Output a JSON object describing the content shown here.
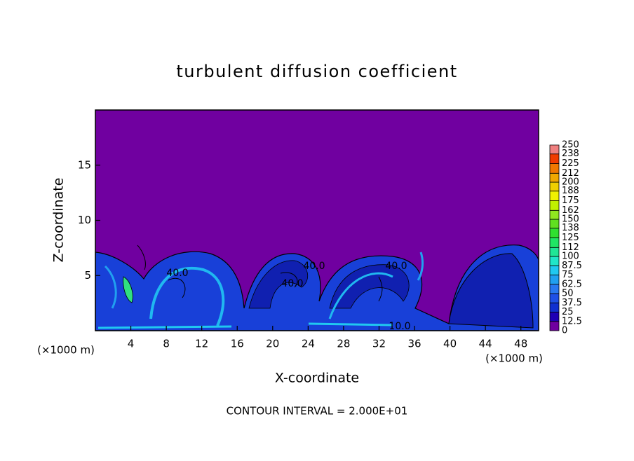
{
  "chart_data": {
    "type": "contour",
    "title": "turbulent diffusion coefficient",
    "x_label": "X-coordinate",
    "y_label": "Z-coordinate",
    "x_unit_left": "(×1000 m)",
    "x_unit_right": "(×1000 m)",
    "footer": "CONTOUR INTERVAL = 2.000E+01",
    "xlim": [
      0,
      50
    ],
    "xticks": [
      4,
      8,
      12,
      16,
      20,
      24,
      28,
      32,
      36,
      40,
      44,
      48
    ],
    "ylim": [
      0,
      20
    ],
    "yticks": [
      5,
      10,
      15
    ],
    "contour_labels": [
      "40.0",
      "40.0",
      "40.0",
      "40.0",
      "10.0"
    ],
    "colorbar": {
      "levels": [
        0,
        12.5,
        25,
        37.5,
        50,
        62.5,
        75,
        87.5,
        100,
        112,
        125,
        138,
        150,
        162,
        175,
        188,
        200,
        212,
        225,
        238,
        250
      ],
      "colors": [
        "#7000a0",
        "#1e00b4",
        "#1030d0",
        "#1e50e6",
        "#2878f0",
        "#20a0f0",
        "#20c8f0",
        "#20e6c8",
        "#20e696",
        "#20e664",
        "#30e030",
        "#60e020",
        "#90e820",
        "#c0f000",
        "#f0f000",
        "#f0d000",
        "#f0a800",
        "#f07800",
        "#f03c00",
        "#f08080"
      ]
    }
  }
}
